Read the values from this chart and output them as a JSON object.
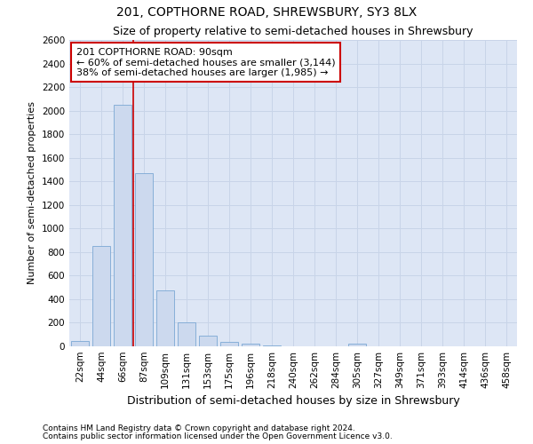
{
  "title": "201, COPTHORNE ROAD, SHREWSBURY, SY3 8LX",
  "subtitle": "Size of property relative to semi-detached houses in Shrewsbury",
  "xlabel": "Distribution of semi-detached houses by size in Shrewsbury",
  "ylabel": "Number of semi-detached properties",
  "categories": [
    "22sqm",
    "44sqm",
    "66sqm",
    "87sqm",
    "109sqm",
    "131sqm",
    "153sqm",
    "175sqm",
    "196sqm",
    "218sqm",
    "240sqm",
    "262sqm",
    "284sqm",
    "305sqm",
    "327sqm",
    "349sqm",
    "371sqm",
    "393sqm",
    "414sqm",
    "436sqm",
    "458sqm"
  ],
  "values": [
    45,
    850,
    2050,
    1470,
    475,
    200,
    90,
    35,
    20,
    5,
    0,
    0,
    0,
    20,
    0,
    0,
    0,
    0,
    0,
    0,
    0
  ],
  "bar_color": "#ccd9ee",
  "bar_edge_color": "#7ba8d4",
  "vline_x": 2.5,
  "vline_color": "#cc0000",
  "annotation_line1": "201 COPTHORNE ROAD: 90sqm",
  "annotation_line2": "← 60% of semi-detached houses are smaller (3,144)",
  "annotation_line3": "38% of semi-detached houses are larger (1,985) →",
  "annotation_box_edge": "#cc0000",
  "ylim_max": 2600,
  "grid_color": "#c8d4e8",
  "bg_color": "#dde6f5",
  "footnote1": "Contains HM Land Registry data © Crown copyright and database right 2024.",
  "footnote2": "Contains public sector information licensed under the Open Government Licence v3.0.",
  "title_fontsize": 10,
  "subtitle_fontsize": 9,
  "annot_fontsize": 8,
  "ylabel_fontsize": 8,
  "xlabel_fontsize": 9,
  "tick_fontsize": 7.5,
  "footnote_fontsize": 6.5,
  "bar_width": 0.85
}
